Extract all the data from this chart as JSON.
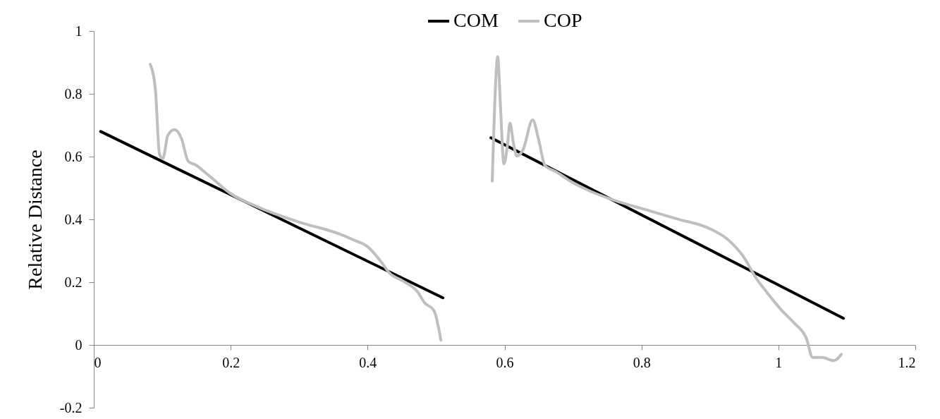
{
  "chart_data": {
    "type": "line",
    "ylabel": "Relative Distance",
    "xlim": [
      0,
      1.2
    ],
    "xticks": [
      0,
      0.2,
      0.4,
      0.6,
      0.8,
      1,
      1.2
    ],
    "ylim": [
      -0.2,
      1
    ],
    "yticks": [
      -0.2,
      0,
      0.2,
      0.4,
      0.6,
      0.8,
      1
    ],
    "grid": false,
    "legend": "top",
    "marker": "none",
    "line_style": "solid",
    "series": [
      {
        "name": "COM",
        "color": "#000000",
        "x": [
          0.01,
          0.51,
          null,
          0.58,
          1.095
        ],
        "values": [
          0.68,
          0.15,
          null,
          0.66,
          0.085
        ]
      },
      {
        "name": "COP",
        "color": "#bfbfbf",
        "x": [
          0.0825,
          0.09,
          0.096,
          0.101,
          0.108,
          0.118,
          0.128,
          0.138,
          0.149,
          0.169,
          0.2,
          0.24,
          0.299,
          0.358,
          0.378,
          0.401,
          0.42,
          0.432,
          0.452,
          0.473,
          0.483,
          0.497,
          0.507,
          null,
          0.582,
          0.584,
          0.59,
          0.594,
          0.599,
          0.604,
          0.608,
          0.613,
          0.618,
          0.627,
          0.641,
          0.65,
          0.659,
          0.675,
          0.696,
          0.724,
          0.76,
          0.806,
          0.853,
          0.899,
          0.926,
          0.949,
          0.968,
          0.982,
          1.005,
          1.023,
          1.041,
          1.05,
          1.064,
          1.081,
          1.092
        ],
        "values": [
          0.894,
          0.813,
          0.607,
          0.594,
          0.667,
          0.686,
          0.658,
          0.585,
          0.573,
          0.538,
          0.482,
          0.439,
          0.392,
          0.354,
          0.336,
          0.311,
          0.264,
          0.229,
          0.203,
          0.169,
          0.135,
          0.109,
          0.015,
          null,
          0.522,
          0.662,
          0.918,
          0.762,
          0.577,
          0.632,
          0.707,
          0.642,
          0.602,
          0.622,
          0.717,
          0.652,
          0.572,
          0.552,
          0.522,
          0.491,
          0.461,
          0.431,
          0.401,
          0.371,
          0.336,
          0.281,
          0.211,
          0.171,
          0.11,
          0.07,
          0.02,
          -0.04,
          -0.04,
          -0.05,
          -0.03
        ]
      }
    ]
  }
}
